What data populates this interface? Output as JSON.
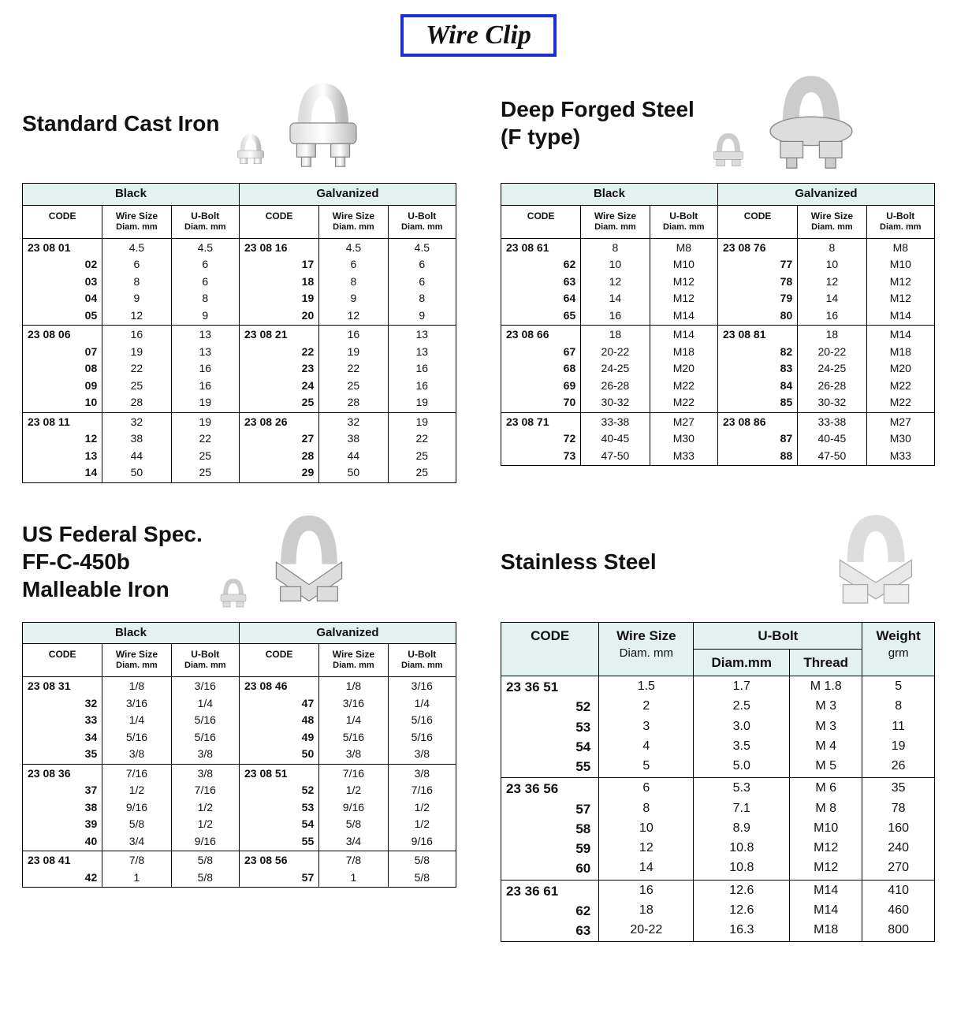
{
  "title": "Wire Clip",
  "sections": {
    "castIron": {
      "title": "Standard Cast Iron"
    },
    "forged": {
      "title": "Deep Forged Steel",
      "sub": "(F type)"
    },
    "usfed": {
      "title": "US Federal Spec.",
      "sub1": "FF-C-450b",
      "sub2": "Malleable Iron"
    },
    "ss": {
      "title": "Stainless Steel"
    }
  },
  "labels": {
    "black": "Black",
    "galv": "Galvanized",
    "code": "CODE",
    "wire": "Wire Size",
    "wireSub": "Diam. mm",
    "ubolt": "U-Bolt",
    "uboltSub": "Diam. mm",
    "uboltDiam": "Diam.mm",
    "thread": "Thread",
    "weight": "Weight",
    "weightSub": "grm"
  },
  "castIron": {
    "groups": [
      [
        {
          "bc": "23 08 01",
          "bw": "4.5",
          "bu": "4.5",
          "gc": "23 08 16",
          "gw": "4.5",
          "gu": "4.5",
          "firstB": true,
          "firstG": true
        },
        {
          "bc": "02",
          "bw": "6",
          "bu": "6",
          "gc": "17",
          "gw": "6",
          "gu": "6"
        },
        {
          "bc": "03",
          "bw": "8",
          "bu": "6",
          "gc": "18",
          "gw": "8",
          "gu": "6"
        },
        {
          "bc": "04",
          "bw": "9",
          "bu": "8",
          "gc": "19",
          "gw": "9",
          "gu": "8"
        },
        {
          "bc": "05",
          "bw": "12",
          "bu": "9",
          "gc": "20",
          "gw": "12",
          "gu": "9"
        }
      ],
      [
        {
          "bc": "23 08 06",
          "bw": "16",
          "bu": "13",
          "gc": "23 08 21",
          "gw": "16",
          "gu": "13",
          "firstB": true,
          "firstG": true
        },
        {
          "bc": "07",
          "bw": "19",
          "bu": "13",
          "gc": "22",
          "gw": "19",
          "gu": "13"
        },
        {
          "bc": "08",
          "bw": "22",
          "bu": "16",
          "gc": "23",
          "gw": "22",
          "gu": "16"
        },
        {
          "bc": "09",
          "bw": "25",
          "bu": "16",
          "gc": "24",
          "gw": "25",
          "gu": "16"
        },
        {
          "bc": "10",
          "bw": "28",
          "bu": "19",
          "gc": "25",
          "gw": "28",
          "gu": "19"
        }
      ],
      [
        {
          "bc": "23 08 11",
          "bw": "32",
          "bu": "19",
          "gc": "23 08 26",
          "gw": "32",
          "gu": "19",
          "firstB": true,
          "firstG": true
        },
        {
          "bc": "12",
          "bw": "38",
          "bu": "22",
          "gc": "27",
          "gw": "38",
          "gu": "22"
        },
        {
          "bc": "13",
          "bw": "44",
          "bu": "25",
          "gc": "28",
          "gw": "44",
          "gu": "25"
        },
        {
          "bc": "14",
          "bw": "50",
          "bu": "25",
          "gc": "29",
          "gw": "50",
          "gu": "25"
        }
      ]
    ]
  },
  "forged": {
    "groups": [
      [
        {
          "bc": "23 08 61",
          "bw": "8",
          "bu": "M8",
          "gc": "23 08 76",
          "gw": "8",
          "gu": "M8",
          "firstB": true,
          "firstG": true
        },
        {
          "bc": "62",
          "bw": "10",
          "bu": "M10",
          "gc": "77",
          "gw": "10",
          "gu": "M10"
        },
        {
          "bc": "63",
          "bw": "12",
          "bu": "M12",
          "gc": "78",
          "gw": "12",
          "gu": "M12"
        },
        {
          "bc": "64",
          "bw": "14",
          "bu": "M12",
          "gc": "79",
          "gw": "14",
          "gu": "M12"
        },
        {
          "bc": "65",
          "bw": "16",
          "bu": "M14",
          "gc": "80",
          "gw": "16",
          "gu": "M14"
        }
      ],
      [
        {
          "bc": "23 08 66",
          "bw": "18",
          "bu": "M14",
          "gc": "23 08 81",
          "gw": "18",
          "gu": "M14",
          "firstB": true,
          "firstG": true
        },
        {
          "bc": "67",
          "bw": "20-22",
          "bu": "M18",
          "gc": "82",
          "gw": "20-22",
          "gu": "M18"
        },
        {
          "bc": "68",
          "bw": "24-25",
          "bu": "M20",
          "gc": "83",
          "gw": "24-25",
          "gu": "M20"
        },
        {
          "bc": "69",
          "bw": "26-28",
          "bu": "M22",
          "gc": "84",
          "gw": "26-28",
          "gu": "M22"
        },
        {
          "bc": "70",
          "bw": "30-32",
          "bu": "M22",
          "gc": "85",
          "gw": "30-32",
          "gu": "M22"
        }
      ],
      [
        {
          "bc": "23 08 71",
          "bw": "33-38",
          "bu": "M27",
          "gc": "23 08 86",
          "gw": "33-38",
          "gu": "M27",
          "firstB": true,
          "firstG": true
        },
        {
          "bc": "72",
          "bw": "40-45",
          "bu": "M30",
          "gc": "87",
          "gw": "40-45",
          "gu": "M30"
        },
        {
          "bc": "73",
          "bw": "47-50",
          "bu": "M33",
          "gc": "88",
          "gw": "47-50",
          "gu": "M33"
        }
      ]
    ]
  },
  "usfed": {
    "groups": [
      [
        {
          "bc": "23 08 31",
          "bw": "1/8",
          "bu": "3/16",
          "gc": "23 08 46",
          "gw": "1/8",
          "gu": "3/16",
          "firstB": true,
          "firstG": true
        },
        {
          "bc": "32",
          "bw": "3/16",
          "bu": "1/4",
          "gc": "47",
          "gw": "3/16",
          "gu": "1/4"
        },
        {
          "bc": "33",
          "bw": "1/4",
          "bu": "5/16",
          "gc": "48",
          "gw": "1/4",
          "gu": "5/16"
        },
        {
          "bc": "34",
          "bw": "5/16",
          "bu": "5/16",
          "gc": "49",
          "gw": "5/16",
          "gu": "5/16"
        },
        {
          "bc": "35",
          "bw": "3/8",
          "bu": "3/8",
          "gc": "50",
          "gw": "3/8",
          "gu": "3/8"
        }
      ],
      [
        {
          "bc": "23 08 36",
          "bw": "7/16",
          "bu": "3/8",
          "gc": "23 08 51",
          "gw": "7/16",
          "gu": "3/8",
          "firstB": true,
          "firstG": true
        },
        {
          "bc": "37",
          "bw": "1/2",
          "bu": "7/16",
          "gc": "52",
          "gw": "1/2",
          "gu": "7/16"
        },
        {
          "bc": "38",
          "bw": "9/16",
          "bu": "1/2",
          "gc": "53",
          "gw": "9/16",
          "gu": "1/2"
        },
        {
          "bc": "39",
          "bw": "5/8",
          "bu": "1/2",
          "gc": "54",
          "gw": "5/8",
          "gu": "1/2"
        },
        {
          "bc": "40",
          "bw": "3/4",
          "bu": "9/16",
          "gc": "55",
          "gw": "3/4",
          "gu": "9/16"
        }
      ],
      [
        {
          "bc": "23 08 41",
          "bw": "7/8",
          "bu": "5/8",
          "gc": "23 08 56",
          "gw": "7/8",
          "gu": "5/8",
          "firstB": true,
          "firstG": true
        },
        {
          "bc": "42",
          "bw": "1",
          "bu": "5/8",
          "gc": "57",
          "gw": "1",
          "gu": "5/8"
        }
      ]
    ]
  },
  "ss": {
    "groups": [
      [
        {
          "c": "23 36 51",
          "w": "1.5",
          "d": "1.7",
          "t": "M  1.8",
          "g": "5",
          "first": true
        },
        {
          "c": "52",
          "w": "2",
          "d": "2.5",
          "t": "M  3",
          "g": "8"
        },
        {
          "c": "53",
          "w": "3",
          "d": "3.0",
          "t": "M  3",
          "g": "11"
        },
        {
          "c": "54",
          "w": "4",
          "d": "3.5",
          "t": "M  4",
          "g": "19"
        },
        {
          "c": "55",
          "w": "5",
          "d": "5.0",
          "t": "M  5",
          "g": "26"
        }
      ],
      [
        {
          "c": "23 36 56",
          "w": "6",
          "d": "5.3",
          "t": "M  6",
          "g": "35",
          "first": true
        },
        {
          "c": "57",
          "w": "8",
          "d": "7.1",
          "t": "M  8",
          "g": "78"
        },
        {
          "c": "58",
          "w": "10",
          "d": "8.9",
          "t": "M10",
          "g": "160"
        },
        {
          "c": "59",
          "w": "12",
          "d": "10.8",
          "t": "M12",
          "g": "240"
        },
        {
          "c": "60",
          "w": "14",
          "d": "10.8",
          "t": "M12",
          "g": "270"
        }
      ],
      [
        {
          "c": "23 36 61",
          "w": "16",
          "d": "12.6",
          "t": "M14",
          "g": "410",
          "first": true
        },
        {
          "c": "62",
          "w": "18",
          "d": "12.6",
          "t": "M14",
          "g": "460"
        },
        {
          "c": "63",
          "w": "20-22",
          "d": "16.3",
          "t": "M18",
          "g": "800"
        }
      ]
    ]
  }
}
